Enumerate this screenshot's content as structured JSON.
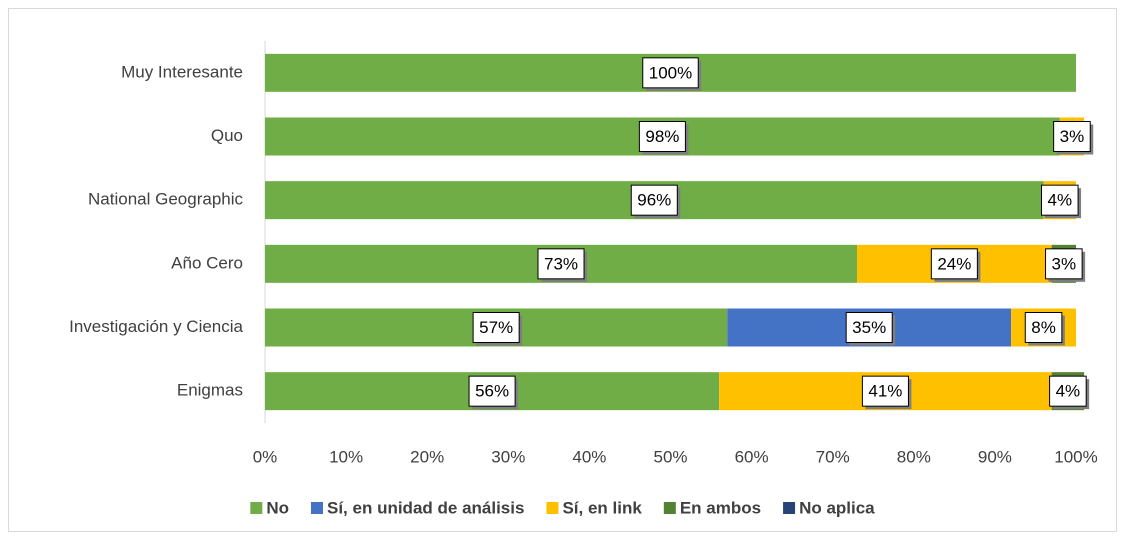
{
  "chart_data": {
    "type": "stacked-barh",
    "categories": [
      "Muy Interesante",
      "Quo",
      "National Geographic",
      "Año Cero",
      "Investigación y Ciencia",
      "Enigmas"
    ],
    "series": [
      {
        "name": "No",
        "color": "#70ad47",
        "values": [
          100,
          98,
          96,
          73,
          57,
          56
        ],
        "value_labels": [
          "100%",
          "98%",
          "96%",
          "73%",
          "57%",
          "56%"
        ]
      },
      {
        "name": "Sí, en unidad de análisis",
        "color": "#4472c4",
        "values": [
          null,
          null,
          null,
          null,
          35,
          null
        ],
        "value_labels": [
          null,
          null,
          null,
          null,
          "35%",
          null
        ]
      },
      {
        "name": "Sí, en link",
        "color": "#ffc000",
        "values": [
          null,
          3,
          4,
          24,
          8,
          41
        ],
        "value_labels": [
          null,
          "3%",
          "4%",
          "24%",
          "8%",
          "41%"
        ]
      },
      {
        "name": "En ambos",
        "color": "#548235",
        "values": [
          null,
          null,
          null,
          3,
          null,
          4
        ],
        "value_labels": [
          null,
          null,
          null,
          "3%",
          null,
          "4%"
        ]
      },
      {
        "name": "No aplica",
        "color": "#264478",
        "values": [
          null,
          null,
          null,
          null,
          null,
          null
        ],
        "value_labels": [
          null,
          null,
          null,
          null,
          null,
          null
        ]
      }
    ],
    "xlim": [
      0,
      100
    ],
    "xticks": [
      {
        "value": 0,
        "label": "0%"
      },
      {
        "value": 10,
        "label": "10%"
      },
      {
        "value": 20,
        "label": "20%"
      },
      {
        "value": 30,
        "label": "30%"
      },
      {
        "value": 40,
        "label": "40%"
      },
      {
        "value": 50,
        "label": "50%"
      },
      {
        "value": 60,
        "label": "60%"
      },
      {
        "value": 70,
        "label": "70%"
      },
      {
        "value": 80,
        "label": "80%"
      },
      {
        "value": 90,
        "label": "90%"
      },
      {
        "value": 100,
        "label": "100%"
      }
    ],
    "legend": "bottom"
  }
}
